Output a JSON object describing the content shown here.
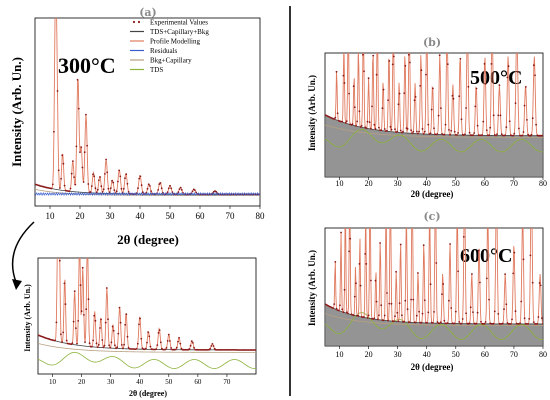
{
  "chart_data": [
    {
      "type": "line",
      "panel": "(a)",
      "temperature": "300°C",
      "xlabel": "2θ (degree)",
      "ylabel": "Intensity (Arb. Un.)",
      "x_ticks": [
        "10",
        "20",
        "30",
        "40",
        "50",
        "60",
        "70",
        "80"
      ],
      "xlim": [
        5,
        80
      ],
      "legend_position": "top-right",
      "legend": [
        {
          "label": "Experimental Values",
          "color": "#8b1a1a",
          "style": "dots"
        },
        {
          "label": "TDS+Capillary+Bkg",
          "color": "#444444",
          "style": "line"
        },
        {
          "label": "Profile Modelling",
          "color": "#e07a5f",
          "style": "line"
        },
        {
          "label": "Residuals",
          "color": "#3a5fcd",
          "style": "line"
        },
        {
          "label": "Bkg+Capillary",
          "color": "#b8a080",
          "style": "line"
        },
        {
          "label": "TDS",
          "color": "#8db33b",
          "style": "line"
        }
      ],
      "peaks": [
        {
          "x": 11.8,
          "y": 1.0
        },
        {
          "x": 12.3,
          "y": 0.58
        },
        {
          "x": 14.2,
          "y": 0.22
        },
        {
          "x": 17.6,
          "y": 0.18
        },
        {
          "x": 19.3,
          "y": 0.68
        },
        {
          "x": 20.4,
          "y": 0.26
        },
        {
          "x": 22.0,
          "y": 0.46
        },
        {
          "x": 24.5,
          "y": 0.12
        },
        {
          "x": 26.6,
          "y": 0.1
        },
        {
          "x": 28.7,
          "y": 0.2
        },
        {
          "x": 30.8,
          "y": 0.08
        },
        {
          "x": 33.1,
          "y": 0.14
        },
        {
          "x": 35.3,
          "y": 0.12
        },
        {
          "x": 40.0,
          "y": 0.11
        },
        {
          "x": 43.0,
          "y": 0.06
        },
        {
          "x": 46.7,
          "y": 0.07
        },
        {
          "x": 50.0,
          "y": 0.05
        },
        {
          "x": 53.5,
          "y": 0.04
        },
        {
          "x": 58.0,
          "y": 0.03
        },
        {
          "x": 65.0,
          "y": 0.02
        }
      ]
    },
    {
      "type": "line",
      "panel": "inset of (a)",
      "xlabel": "2θ (degree)",
      "ylabel": "Intensity (Arb. Un.)",
      "x_ticks": [
        "10",
        "20",
        "30",
        "40",
        "50",
        "60",
        "70"
      ],
      "xlim": [
        5,
        80
      ]
    },
    {
      "type": "line",
      "panel": "(b)",
      "temperature": "500°C",
      "xlabel": "2θ (degree)",
      "ylabel": "Intensity (Arb. Un.)",
      "x_ticks": [
        "10",
        "20",
        "30",
        "40",
        "50",
        "60",
        "70",
        "80"
      ],
      "xlim": [
        5,
        80
      ]
    },
    {
      "type": "line",
      "panel": "(c)",
      "temperature": "600°C",
      "xlabel": "2θ (degree)",
      "ylabel": "Intensity (Arb. Un.)",
      "x_ticks": [
        "10",
        "20",
        "30",
        "40",
        "50",
        "60",
        "70",
        "80"
      ],
      "xlim": [
        5,
        80
      ]
    }
  ]
}
